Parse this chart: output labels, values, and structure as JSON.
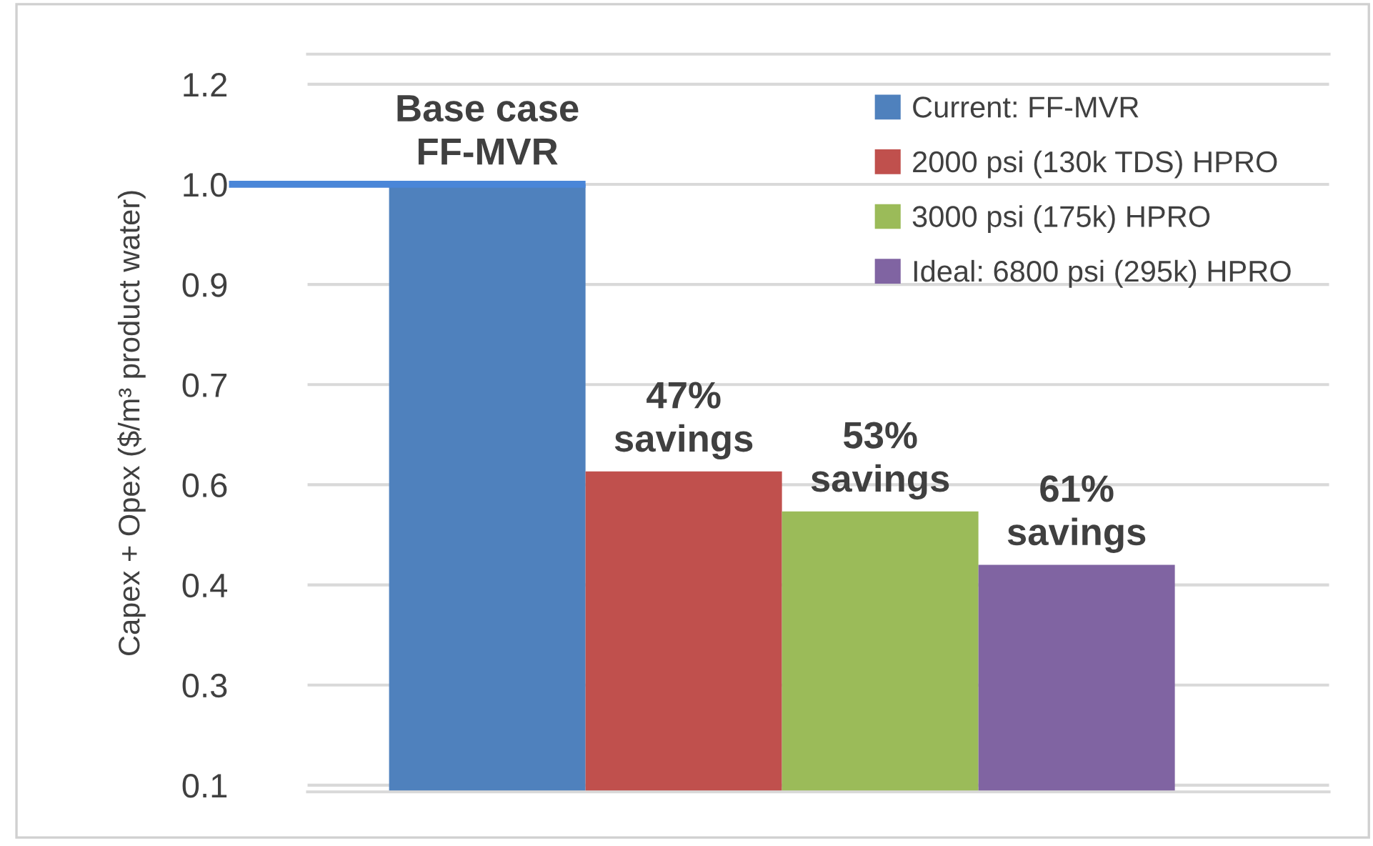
{
  "chart_data": {
    "type": "bar",
    "ylabel": "Capex + Opex ($/m³ product water)",
    "categories": [
      null
    ],
    "series": [
      {
        "name": "Current: FF-MVR",
        "color": "#4f81bd",
        "values": [
          1.05
        ]
      },
      {
        "name": "2000 psi (130k TDS) HPRO",
        "color": "#c0504d",
        "values": [
          0.62
        ]
      },
      {
        "name": "3000 psi (175k) HPRO",
        "color": "#9bbb59",
        "values": [
          0.56
        ]
      },
      {
        "name": "Ideal: 6800 psi (295k) HPRO",
        "color": "#8064a2",
        "values": [
          0.48
        ]
      }
    ],
    "ylim": [
      0.14,
      1.245
    ],
    "yticks": [
      1.2,
      {
        "value": 1.05,
        "label": "1.0"
      },
      0.9,
      {
        "value": 0.75,
        "label": "0.7"
      },
      0.6,
      {
        "value": 0.45,
        "label": "0.4"
      },
      0.3,
      {
        "value": 0.15,
        "label": "0.1"
      }
    ],
    "ref_lines": [
      {
        "axis": "y",
        "value": 1.05,
        "color": "#4a86d8"
      }
    ],
    "annotations": [
      {
        "text": "Base case\nFF-MVR",
        "y": 1.05
      },
      {
        "text": "47%\nsavings",
        "y": 0.62
      },
      {
        "text": "53%\nsavings",
        "y": 0.56
      },
      {
        "text": "61%\nsavings",
        "y": 0.48
      }
    ],
    "grid": "y",
    "legend": "top right"
  }
}
